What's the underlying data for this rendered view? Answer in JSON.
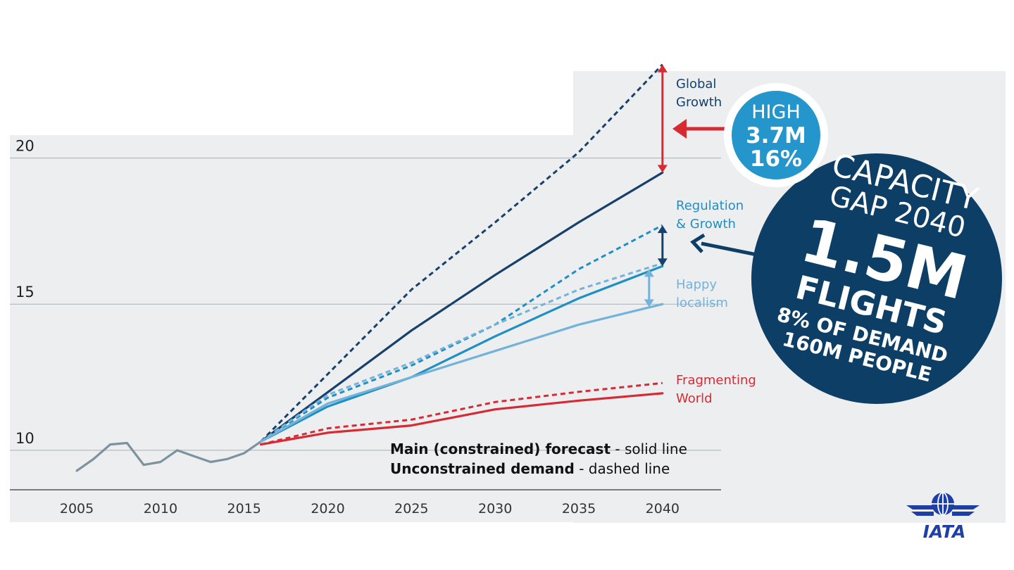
{
  "colors": {
    "background_panel": "#eceef0",
    "historical": "#7d929f",
    "global_growth": "#17406a",
    "regulation_growth": "#1f8fc4",
    "happy_localism": "#73b2d9",
    "fragmenting_world": "#d62b32",
    "gap_circle": "#0c3e66",
    "high_circle": "#2496cb"
  },
  "notes": {
    "constrained_bold": "Main (constrained) forecast",
    "constrained_rest": " - solid line",
    "unconstrained_bold": "Unconstrained demand",
    "unconstrained_rest": " - dashed line"
  },
  "high_badge": {
    "line1": "HIGH",
    "line2": "3.7M",
    "line3": "16%"
  },
  "gap_badge": {
    "line1": "CAPACITY",
    "line2": "GAP 2040",
    "line3": "1.5M",
    "line4": "FLIGHTS",
    "line5": "8% OF DEMAND",
    "line6": "160M PEOPLE"
  },
  "logo": {
    "text": "IATA"
  },
  "chart_data": {
    "type": "line",
    "title": "",
    "xlabel": "",
    "ylabel": "",
    "xlim": [
      2001,
      2043.5
    ],
    "ylim": [
      8.6,
      23
    ],
    "x_ticks": [
      2005,
      2010,
      2015,
      2020,
      2025,
      2030,
      2035,
      2040
    ],
    "y_ticks": [
      10,
      15,
      20
    ],
    "grid": "horizontal",
    "series": [
      {
        "name": "",
        "key": "historical",
        "style": "solid",
        "x": [
          2005,
          2006,
          2007,
          2008,
          2009,
          2010,
          2011,
          2012,
          2013,
          2014,
          2015,
          2016
        ],
        "y": [
          9.3,
          9.7,
          10.2,
          10.25,
          9.5,
          9.6,
          10.0,
          9.8,
          9.6,
          9.7,
          9.9,
          10.3
        ]
      },
      {
        "name": "Global Growth",
        "key": "global_growth",
        "style": "solid",
        "x": [
          2016,
          2025,
          2030,
          2035,
          2040
        ],
        "y": [
          10.3,
          14.1,
          16.0,
          17.8,
          19.5
        ]
      },
      {
        "name": "Global Growth",
        "key": "global_growth",
        "style": "dashed",
        "x": [
          2016,
          2025,
          2030,
          2035,
          2040
        ],
        "y": [
          10.3,
          15.5,
          17.8,
          20.2,
          23.2
        ]
      },
      {
        "name": "Regulation & Growth",
        "key": "regulation_growth",
        "style": "solid",
        "x": [
          2016,
          2020,
          2025,
          2030,
          2035,
          2040
        ],
        "y": [
          10.3,
          11.5,
          12.5,
          13.9,
          15.2,
          16.3
        ]
      },
      {
        "name": "Regulation & Growth",
        "key": "regulation_growth",
        "style": "dashed",
        "x": [
          2016,
          2020,
          2025,
          2030,
          2035,
          2040
        ],
        "y": [
          10.3,
          11.8,
          12.9,
          14.3,
          16.2,
          17.7
        ]
      },
      {
        "name": "Happy localism",
        "key": "happy_localism",
        "style": "solid",
        "x": [
          2016,
          2020,
          2025,
          2030,
          2035,
          2040
        ],
        "y": [
          10.3,
          11.6,
          12.5,
          13.4,
          14.3,
          15.0
        ]
      },
      {
        "name": "Happy localism",
        "key": "happy_localism",
        "style": "dashed",
        "x": [
          2016,
          2020,
          2025,
          2030,
          2035,
          2040
        ],
        "y": [
          10.3,
          11.9,
          13.0,
          14.3,
          15.5,
          16.4
        ]
      },
      {
        "name": "Fragmenting World",
        "key": "fragmenting_world",
        "style": "solid",
        "x": [
          2016,
          2020,
          2025,
          2030,
          2035,
          2040
        ],
        "y": [
          10.2,
          10.6,
          10.85,
          11.4,
          11.7,
          11.95
        ]
      },
      {
        "name": "Fragmenting World",
        "key": "fragmenting_world",
        "style": "dashed",
        "x": [
          2016,
          2020,
          2025,
          2030,
          2035,
          2040
        ],
        "y": [
          10.2,
          10.75,
          11.05,
          11.65,
          12.0,
          12.3
        ]
      }
    ],
    "labels": [
      {
        "key": "global_growth",
        "lines": [
          "Global",
          "Growth"
        ]
      },
      {
        "key": "regulation_growth",
        "lines": [
          "Regulation",
          "& Growth"
        ]
      },
      {
        "key": "happy_localism",
        "lines": [
          "Happy",
          "localism"
        ]
      },
      {
        "key": "fragmenting_world",
        "lines": [
          "Fragmenting",
          "World"
        ]
      }
    ],
    "gap_markers": [
      {
        "key": "fragmenting_world",
        "x": 2040,
        "from": 19.5,
        "to": 23.2
      },
      {
        "key": "global_growth",
        "x": 2040,
        "from": 16.3,
        "to": 17.7
      },
      {
        "key": "happy_localism",
        "x": 2039.2,
        "from": 14.9,
        "to": 16.2
      }
    ]
  }
}
